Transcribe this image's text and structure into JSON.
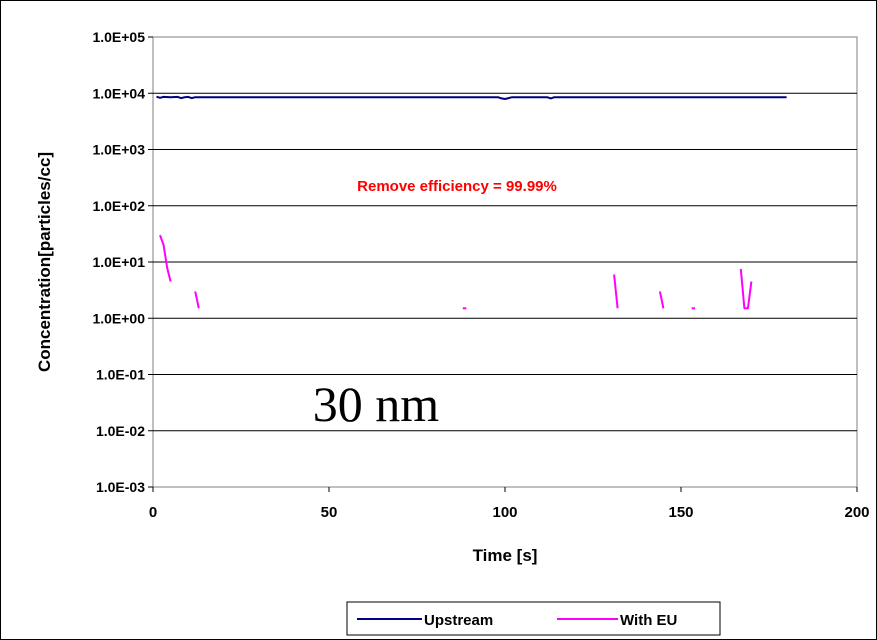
{
  "chart_data": {
    "type": "line",
    "xlabel": "Time [s]",
    "ylabel": "Concentration[particles/cc]",
    "xlim": [
      0,
      200
    ],
    "ylim": [
      0.001,
      100000
    ],
    "yscale": "log",
    "x_ticks": [
      "0",
      "50",
      "100",
      "150",
      "200"
    ],
    "y_ticks": [
      "1.0E-03",
      "1.0E-02",
      "1.0E-01",
      "1.0E+00",
      "1.0E+01",
      "1.0E+02",
      "1.0E+03",
      "1.0E+04",
      "1.0E+05"
    ],
    "grid": "horizontal",
    "legend_position": "bottom",
    "annotations": {
      "efficiency": "Remove efficiency = 99.99%",
      "size": "30 nm"
    },
    "series": [
      {
        "name": "Upstream",
        "color": "#000080",
        "segments": [
          [
            [
              1,
              8700
            ],
            [
              2,
              8300
            ],
            [
              3,
              8600
            ],
            [
              5,
              8500
            ],
            [
              7,
              8600
            ],
            [
              8,
              8200
            ],
            [
              9,
              8500
            ],
            [
              10,
              8600
            ],
            [
              11,
              8200
            ],
            [
              12,
              8500
            ],
            [
              20,
              8500
            ],
            [
              40,
              8500
            ],
            [
              60,
              8500
            ],
            [
              80,
              8500
            ],
            [
              98,
              8500
            ],
            [
              99,
              8100
            ],
            [
              100,
              7900
            ],
            [
              101,
              8200
            ],
            [
              102,
              8500
            ],
            [
              110,
              8500
            ],
            [
              112,
              8500
            ],
            [
              113,
              8100
            ],
            [
              114,
              8500
            ],
            [
              130,
              8500
            ],
            [
              150,
              8500
            ],
            [
              170,
              8500
            ],
            [
              180,
              8500
            ]
          ]
        ]
      },
      {
        "name": "With EU",
        "color": "#ff00ff",
        "segments": [
          [
            [
              2,
              30
            ],
            [
              3,
              20
            ],
            [
              4,
              8
            ],
            [
              5,
              4.5
            ]
          ],
          [
            [
              12,
              3
            ],
            [
              13,
              1.5
            ]
          ],
          [
            [
              88,
              1.5
            ],
            [
              89,
              1.5
            ]
          ],
          [
            [
              131,
              6
            ],
            [
              132,
              1.5
            ]
          ],
          [
            [
              144,
              3
            ],
            [
              145,
              1.5
            ]
          ],
          [
            [
              153,
              1.5
            ],
            [
              154,
              1.5
            ]
          ],
          [
            [
              167,
              7.5
            ],
            [
              168,
              1.5
            ],
            [
              169,
              1.5
            ],
            [
              170,
              4.5
            ]
          ]
        ]
      }
    ]
  }
}
